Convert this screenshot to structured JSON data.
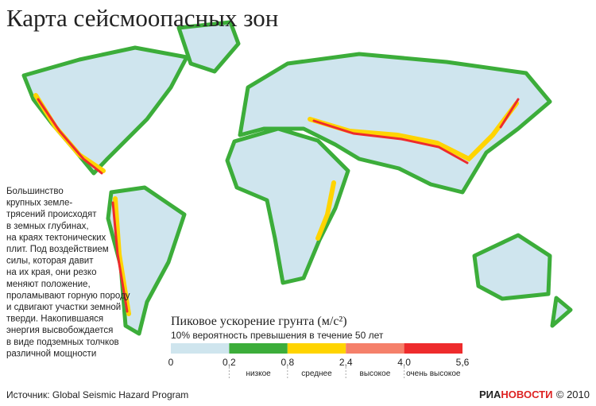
{
  "header": {
    "title": "Карта сейсмоопасных зон"
  },
  "side_text": [
    "Большинство",
    "крупных земле-",
    "трясений происходят",
    "в земных глубинах,",
    "на краях тектонических",
    "плит. Под воздействием",
    "силы, которая давит",
    "на их края, они резко",
    "меняют положение,",
    "проламывают горную породу",
    "и сдвигают участки земной",
    "тверди. Накопившаяся",
    "энергия высвобождается",
    "в виде подземных толчков",
    "различной мощности"
  ],
  "legend": {
    "title": "Пиковое ускорение грунта (м/с²)",
    "subtitle": "10% вероятность превышения в течение 50 лет",
    "colors": [
      "#cfe5ee",
      "#3cad3a",
      "#ffd400",
      "#f5806a",
      "#ee2b2c"
    ],
    "ticks": [
      "0",
      "0,2",
      "0,8",
      "2,4",
      "4,0",
      "5,6"
    ],
    "levels": [
      "низкое",
      "среднее",
      "высокое",
      "очень высокое"
    ]
  },
  "footer": {
    "source": "Источник: Global Seismic  Hazard Program",
    "logo_ria": "РИА",
    "logo_novosti": "НОВОСТИ",
    "copyright": "© 2010"
  }
}
